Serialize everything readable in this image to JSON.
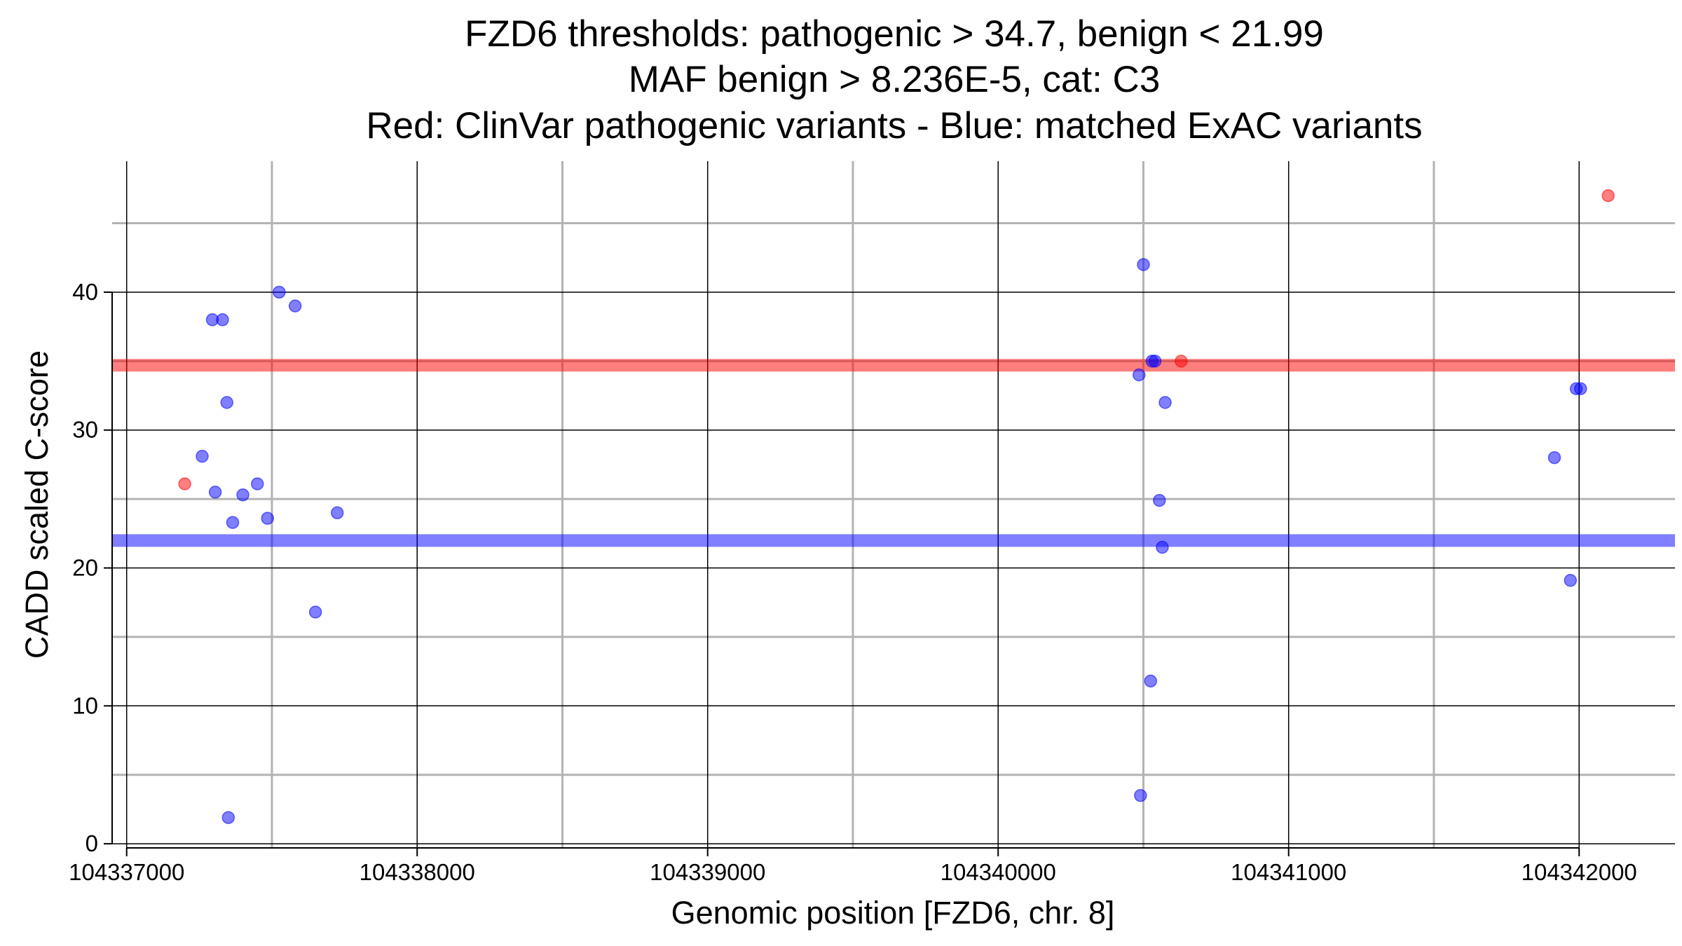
{
  "chart_data": {
    "type": "scatter",
    "title_lines": [
      "FZD6 thresholds: pathogenic > 34.7, benign < 21.99",
      "MAF benign > 8.236E-5, cat: C3",
      "Red: ClinVar pathogenic variants - Blue: matched ExAC variants"
    ],
    "xlabel": "Genomic position [FZD6, chr. 8]",
    "ylabel": "CADD scaled C-score",
    "xlim": [
      104336950,
      104342330
    ],
    "ylim": [
      -0.3,
      49.5
    ],
    "x_ticks": [
      104337000,
      104338000,
      104339000,
      104340000,
      104341000,
      104342000
    ],
    "x_tick_labels": [
      "104337000",
      "104338000",
      "104339000",
      "104340000",
      "104341000",
      "104342000"
    ],
    "y_ticks": [
      0,
      10,
      20,
      30,
      40
    ],
    "y_tick_labels": [
      "0",
      "10",
      "20",
      "30",
      "40"
    ],
    "x_minor_gridlines": [
      104337500,
      104338500,
      104339500,
      104340500,
      104341500
    ],
    "y_minor_gridlines": [
      5,
      15,
      25,
      35,
      45
    ],
    "grid": true,
    "thresholds": [
      {
        "kind": "pathogenic",
        "value": 34.7,
        "color": "#ff0000"
      },
      {
        "kind": "benign",
        "value": 21.99,
        "color": "#0000ff"
      }
    ],
    "series": [
      {
        "color": "#ff0000",
        "points": [
          {
            "x": 104337200,
            "y": 26.1
          },
          {
            "x": 104340630,
            "y": 35.0
          },
          {
            "x": 104342100,
            "y": 47.0
          }
        ]
      },
      {
        "color": "#0000ff",
        "points": [
          {
            "x": 104337260,
            "y": 28.1
          },
          {
            "x": 104337295,
            "y": 38.0
          },
          {
            "x": 104337330,
            "y": 38.0
          },
          {
            "x": 104337305,
            "y": 25.5
          },
          {
            "x": 104337345,
            "y": 32.0
          },
          {
            "x": 104337365,
            "y": 23.3
          },
          {
            "x": 104337400,
            "y": 25.3
          },
          {
            "x": 104337450,
            "y": 26.1
          },
          {
            "x": 104337485,
            "y": 23.6
          },
          {
            "x": 104337525,
            "y": 40.0
          },
          {
            "x": 104337580,
            "y": 39.0
          },
          {
            "x": 104337650,
            "y": 16.8
          },
          {
            "x": 104337725,
            "y": 24.0
          },
          {
            "x": 104337350,
            "y": 1.9
          },
          {
            "x": 104340500,
            "y": 42.0
          },
          {
            "x": 104340485,
            "y": 34.0
          },
          {
            "x": 104340530,
            "y": 35.0
          },
          {
            "x": 104340540,
            "y": 35.0
          },
          {
            "x": 104340575,
            "y": 32.0
          },
          {
            "x": 104340555,
            "y": 24.9
          },
          {
            "x": 104340565,
            "y": 21.5
          },
          {
            "x": 104340525,
            "y": 11.8
          },
          {
            "x": 104340490,
            "y": 3.5
          },
          {
            "x": 104341915,
            "y": 28.0
          },
          {
            "x": 104341990,
            "y": 33.0
          },
          {
            "x": 104342005,
            "y": 33.0
          },
          {
            "x": 104341970,
            "y": 19.1
          }
        ]
      }
    ]
  }
}
